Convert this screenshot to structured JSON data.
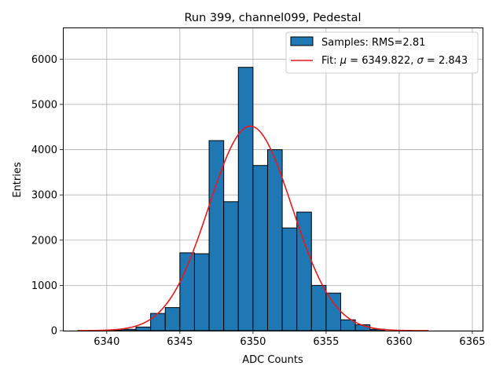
{
  "chart_data": {
    "type": "bar",
    "title": "Run 399, channel099, Pedestal",
    "xlabel": "ADC Counts",
    "ylabel": "Entries",
    "xlim": [
      6337,
      6365.7
    ],
    "ylim": [
      0,
      6700
    ],
    "grid": true,
    "legend_position": "top-right",
    "x_ticks": [
      6340,
      6345,
      6350,
      6355,
      6360,
      6365
    ],
    "y_ticks": [
      0,
      1000,
      2000,
      3000,
      4000,
      5000,
      6000
    ],
    "colors": {
      "bar_fill": "#1f77b4",
      "bar_edge": "#000000",
      "fit_line": "#e41a1c",
      "grid": "#b0b0b0"
    },
    "histogram": {
      "name": "Samples: RMS=2.81",
      "bin_width": 1.0,
      "bin_starts": [
        6340,
        6341,
        6342,
        6343,
        6344,
        6345,
        6346,
        6347,
        6348,
        6349,
        6350,
        6351,
        6352,
        6353,
        6354,
        6355,
        6356,
        6357,
        6358
      ],
      "counts": [
        10,
        30,
        80,
        380,
        510,
        1720,
        1700,
        4200,
        2850,
        5820,
        3650,
        4000,
        2270,
        2620,
        1000,
        830,
        240,
        130,
        30
      ]
    },
    "fit": {
      "label_prefix": "Fit: ",
      "mu_symbol": "μ",
      "mu_value": "6349.822",
      "sigma_symbol": "σ",
      "sigma_value": "2.843",
      "mu": 6349.822,
      "sigma": 2.843,
      "amplitude": 4520,
      "x_range": [
        6338,
        6362
      ]
    }
  }
}
